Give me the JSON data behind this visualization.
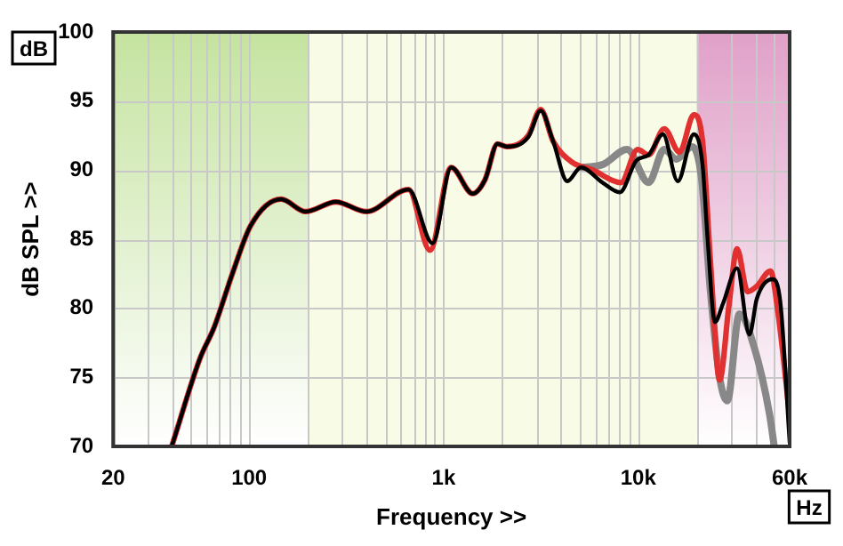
{
  "chart_data": {
    "type": "line",
    "xlabel": "Frequency >>",
    "ylabel": "dB SPL >>",
    "annotations": [
      "dB",
      "Hz"
    ],
    "log": "x",
    "grid": true,
    "legend": false,
    "marker": "none",
    "line_style": "solid",
    "xlim": [
      20,
      60000
    ],
    "ylim": [
      70,
      100
    ],
    "xticks": [
      {
        "value": 20,
        "label": "20"
      },
      {
        "value": 30,
        "label": null
      },
      {
        "value": 40,
        "label": null
      },
      {
        "value": 50,
        "label": null
      },
      {
        "value": 60,
        "label": null
      },
      {
        "value": 70,
        "label": null
      },
      {
        "value": 80,
        "label": null
      },
      {
        "value": 90,
        "label": null
      },
      {
        "value": 100,
        "label": "100"
      },
      {
        "value": 200,
        "label": null
      },
      {
        "value": 300,
        "label": null
      },
      {
        "value": 400,
        "label": null
      },
      {
        "value": 500,
        "label": null
      },
      {
        "value": 600,
        "label": null
      },
      {
        "value": 700,
        "label": null
      },
      {
        "value": 800,
        "label": null
      },
      {
        "value": 900,
        "label": null
      },
      {
        "value": 1000,
        "label": "1k"
      },
      {
        "value": 2000,
        "label": null
      },
      {
        "value": 3000,
        "label": null
      },
      {
        "value": 4000,
        "label": null
      },
      {
        "value": 5000,
        "label": null
      },
      {
        "value": 6000,
        "label": null
      },
      {
        "value": 7000,
        "label": null
      },
      {
        "value": 8000,
        "label": null
      },
      {
        "value": 9000,
        "label": null
      },
      {
        "value": 10000,
        "label": "10k"
      },
      {
        "value": 20000,
        "label": null
      },
      {
        "value": 30000,
        "label": null
      },
      {
        "value": 40000,
        "label": null
      },
      {
        "value": 50000,
        "label": null
      },
      {
        "value": 60000,
        "label": "60k"
      }
    ],
    "yticks": [
      70,
      75,
      80,
      85,
      90,
      95,
      100
    ],
    "bands": [
      {
        "axis": "x",
        "from": 20,
        "to": 200,
        "color": "#c5e3a0"
      },
      {
        "axis": "x",
        "from": 20000,
        "to": 60000,
        "color": "#e0a0c8"
      }
    ],
    "series": [
      {
        "color": "#888888",
        "x": [
          5070,
          6550,
          8760,
          11300,
          13600,
          15700,
          18900,
          21100,
          23500,
          26200,
          28700,
          33100,
          39400,
          47200,
          50000
        ],
        "values": [
          90.2,
          90.4,
          91.5,
          89.1,
          91.5,
          90.8,
          91.7,
          89.5,
          81.2,
          75.0,
          73.3,
          79.6,
          77.2,
          72.4,
          70
        ]
      },
      {
        "color": "#e03030",
        "x": [
          40,
          56,
          66,
          82,
          102,
          146,
          195,
          279,
          400,
          660,
          850,
          1092,
          1410,
          1630,
          1890,
          2110,
          2720,
          3150,
          3650,
          4540,
          5860,
          8140,
          9930,
          11300,
          13600,
          16300,
          19300,
          21400,
          23500,
          26200,
          29300,
          32200,
          36500,
          40700,
          47800,
          52600,
          60000
        ],
        "values": [
          70,
          76.4,
          78.6,
          82.5,
          86.0,
          87.9,
          87.0,
          87.7,
          87.0,
          88.6,
          84.2,
          90.2,
          88.3,
          89.3,
          91.9,
          91.7,
          92.5,
          94.4,
          92.1,
          90.6,
          90.0,
          89.1,
          91.5,
          91.1,
          93.0,
          91.3,
          94.0,
          92.1,
          83.4,
          74.8,
          80.3,
          84.3,
          81.2,
          81.6,
          82.7,
          79.4,
          72.2
        ]
      },
      {
        "color": "#000000",
        "x": [
          40,
          56,
          66,
          82,
          102,
          146,
          195,
          279,
          400,
          660,
          877,
          1092,
          1410,
          1630,
          1890,
          2110,
          2720,
          3150,
          3650,
          4320,
          5070,
          6550,
          8040,
          9780,
          11300,
          13400,
          15960,
          19300,
          21400,
          22700,
          24800,
          27200,
          32200,
          37300,
          40700,
          48900,
          53700,
          60000
        ],
        "values": [
          70,
          76.4,
          78.6,
          82.5,
          86.0,
          87.9,
          87.0,
          87.7,
          87.0,
          88.6,
          84.7,
          90.2,
          88.3,
          89.3,
          91.9,
          91.7,
          92.4,
          94.3,
          92.1,
          89.2,
          90.2,
          89.1,
          88.4,
          90.7,
          91.1,
          92.6,
          89.2,
          92.6,
          90.4,
          85.1,
          79.0,
          80.3,
          82.9,
          78.1,
          80.7,
          82.1,
          80.5,
          70.3
        ]
      }
    ]
  }
}
